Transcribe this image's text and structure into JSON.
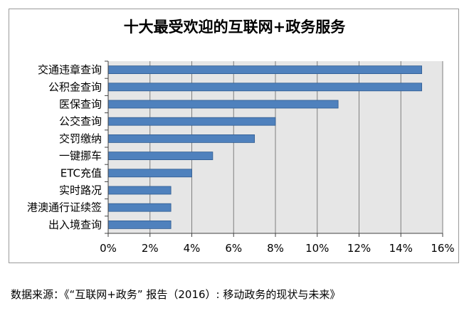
{
  "chart_data": {
    "type": "bar",
    "orientation": "horizontal",
    "title": "十大最受欢迎的互联网+政务服务",
    "categories": [
      "交通违章查询",
      "公积金查询",
      "医保查询",
      "公交查询",
      "交罚缴纳",
      "一键挪车",
      "ETC充值",
      "实时路况",
      "港澳通行证续签",
      "出入境查询"
    ],
    "values": [
      15,
      15,
      11,
      8,
      7,
      5,
      4,
      3,
      3,
      3
    ],
    "value_unit": "%",
    "xlim": [
      0,
      16
    ],
    "x_ticks": [
      "0%",
      "2%",
      "4%",
      "6%",
      "8%",
      "10%",
      "12%",
      "14%",
      "16%"
    ],
    "grid": "vertical",
    "colors": {
      "bar": "#4f81bd",
      "bar_edge": "#2f5c91",
      "plot_bg": "#e6e6e6",
      "grid": "#7f7f7f"
    }
  },
  "source": "数据来源：《“互联网+政务” 报告（2016）: 移动政务的现状与未来》"
}
